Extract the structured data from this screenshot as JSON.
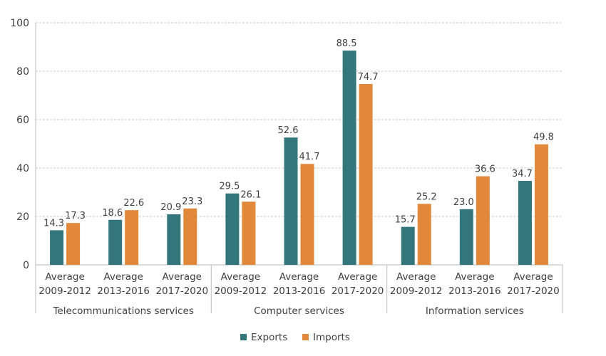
{
  "chart_data": {
    "type": "bar",
    "title": "",
    "xlabel": "",
    "ylabel": "",
    "ylim": [
      0,
      100
    ],
    "yticks": [
      0,
      20,
      40,
      60,
      80,
      100
    ],
    "grid": true,
    "legend_position": "bottom",
    "colors": {
      "Exports": "#33767c",
      "Imports": "#e2883a"
    },
    "groups": [
      {
        "name": "Telecommunications services",
        "categories": [
          0,
          1,
          2
        ]
      },
      {
        "name": "Computer services",
        "categories": [
          3,
          4,
          5
        ]
      },
      {
        "name": "Information services",
        "categories": [
          6,
          7,
          8
        ]
      }
    ],
    "categories": [
      [
        "Average",
        "2009-2012"
      ],
      [
        "Average",
        "2013-2016"
      ],
      [
        "Average",
        "2017-2020"
      ],
      [
        "Average",
        "2009-2012"
      ],
      [
        "Average",
        "2013-2016"
      ],
      [
        "Average",
        "2017-2020"
      ],
      [
        "Average",
        "2009-2012"
      ],
      [
        "Average",
        "2013-2016"
      ],
      [
        "Average",
        "2017-2020"
      ]
    ],
    "series": [
      {
        "name": "Exports",
        "values": [
          14.3,
          18.6,
          20.9,
          29.5,
          52.6,
          88.5,
          15.7,
          23.0,
          34.7
        ]
      },
      {
        "name": "Imports",
        "values": [
          17.3,
          22.6,
          23.3,
          26.1,
          41.7,
          74.7,
          25.2,
          36.6,
          49.8
        ]
      }
    ]
  }
}
